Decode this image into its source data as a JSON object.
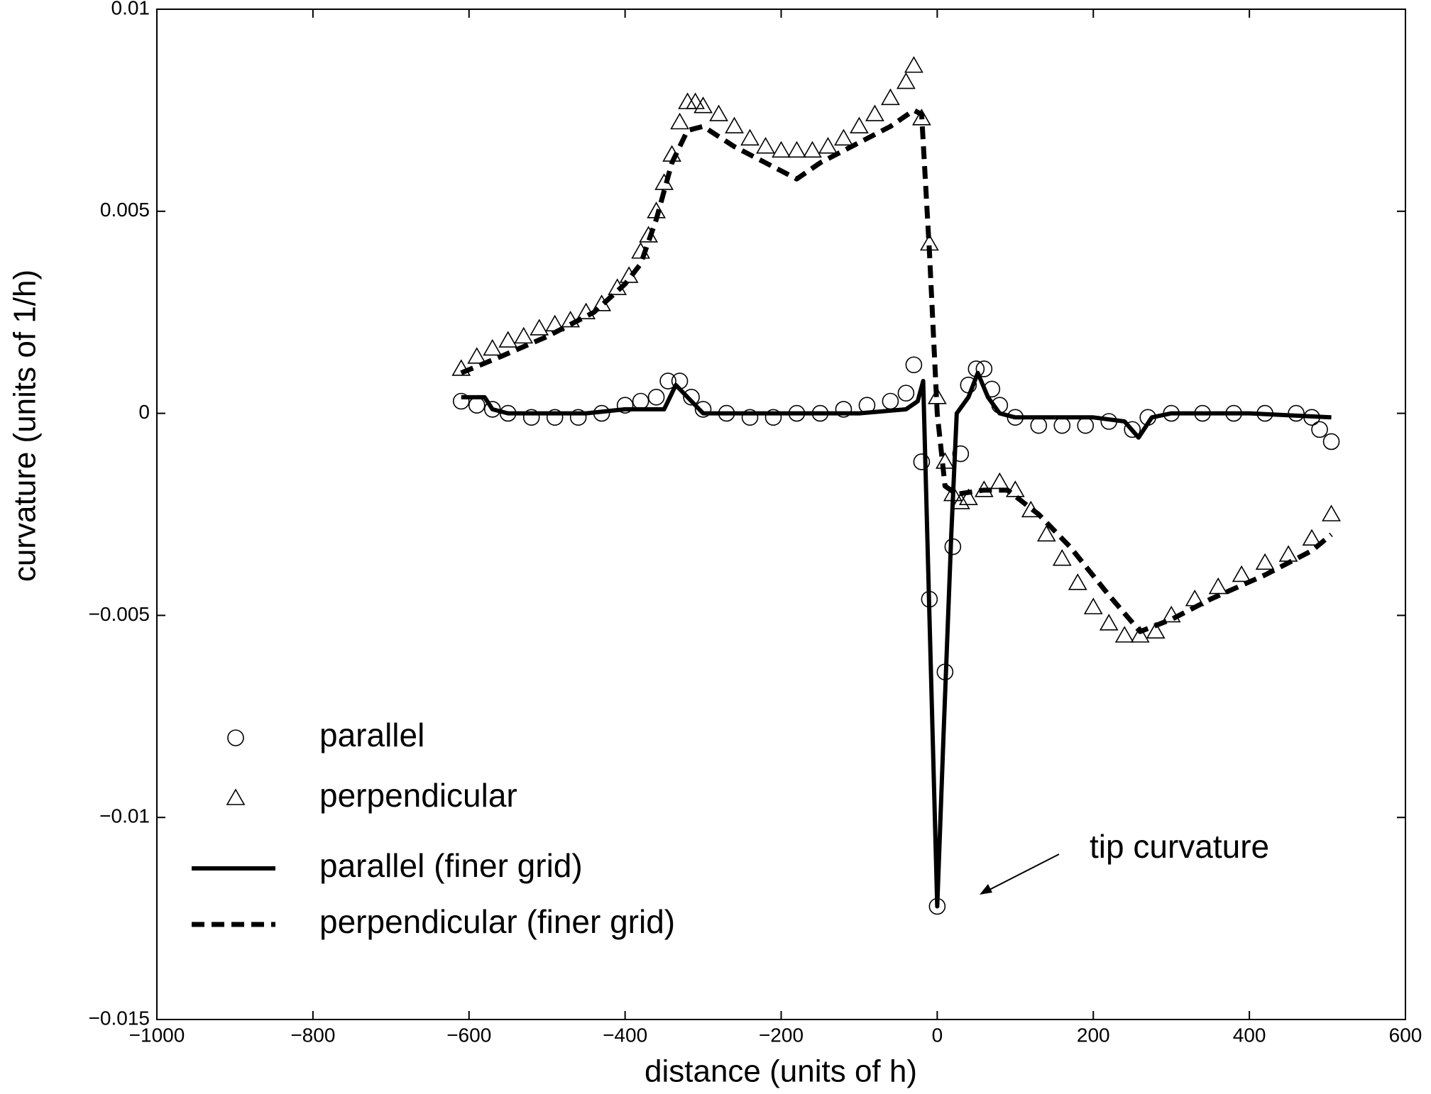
{
  "chart_data": {
    "type": "line",
    "xlabel": "distance (units of h)",
    "ylabel": "curvature (units of 1/h)",
    "annotation": "tip curvature",
    "xlim": [
      -1000,
      600
    ],
    "ylim": [
      -0.015,
      0.01
    ],
    "xticks": [
      {
        "value": -1000,
        "label": "−1000"
      },
      {
        "value": -800,
        "label": "−800"
      },
      {
        "value": -600,
        "label": "−600"
      },
      {
        "value": -400,
        "label": "−400"
      },
      {
        "value": -200,
        "label": "−200"
      },
      0,
      200,
      400,
      600
    ],
    "yticks": [
      {
        "value": -0.015,
        "label": "−0.015"
      },
      {
        "value": -0.01,
        "label": "−0.01"
      },
      {
        "value": -0.005,
        "label": "−0.005"
      },
      0,
      0.005,
      0.01
    ],
    "grid": false,
    "legend": "lower left",
    "series": [
      {
        "name": "parallel",
        "color": "#000000",
        "marker": "circle",
        "line": "none",
        "x": [
          -610,
          -590,
          -570,
          -550,
          -520,
          -490,
          -460,
          -430,
          -400,
          -380,
          -360,
          -345,
          -330,
          -315,
          -300,
          -270,
          -240,
          -210,
          -180,
          -150,
          -120,
          -90,
          -60,
          -40,
          -30,
          -20,
          -10,
          0,
          10,
          20,
          30,
          40,
          50,
          60,
          70,
          80,
          100,
          130,
          160,
          190,
          220,
          250,
          270,
          300,
          340,
          380,
          420,
          460,
          480,
          490,
          505
        ],
        "values": [
          0.0003,
          0.0002,
          0.0001,
          0.0,
          -0.0001,
          -0.0001,
          -0.0001,
          0.0,
          0.0002,
          0.0003,
          0.0004,
          0.0008,
          0.0008,
          0.0004,
          0.0001,
          0.0,
          -0.0001,
          -0.0001,
          0.0,
          0.0,
          0.0001,
          0.0002,
          0.0003,
          0.0005,
          0.0012,
          -0.0012,
          -0.0046,
          -0.0122,
          -0.0064,
          -0.0033,
          -0.001,
          0.0007,
          0.0011,
          0.0011,
          0.0006,
          0.0002,
          -0.0001,
          -0.0003,
          -0.0003,
          -0.0003,
          -0.0002,
          -0.0004,
          -0.0001,
          0.0,
          0.0,
          0.0,
          0.0,
          0.0,
          -0.0001,
          -0.0004,
          -0.0007
        ]
      },
      {
        "name": "perpendicular",
        "color": "#000000",
        "marker": "triangle",
        "line": "none",
        "x": [
          -610,
          -590,
          -570,
          -550,
          -530,
          -510,
          -490,
          -470,
          -450,
          -430,
          -410,
          -395,
          -380,
          -370,
          -360,
          -350,
          -340,
          -330,
          -320,
          -310,
          -300,
          -280,
          -260,
          -240,
          -220,
          -200,
          -180,
          -160,
          -140,
          -120,
          -100,
          -80,
          -60,
          -40,
          -30,
          -20,
          -10,
          0,
          10,
          20,
          30,
          40,
          60,
          80,
          100,
          120,
          140,
          160,
          180,
          200,
          220,
          240,
          260,
          280,
          300,
          330,
          360,
          390,
          420,
          450,
          480,
          505
        ],
        "values": [
          0.0011,
          0.0014,
          0.0016,
          0.0018,
          0.0019,
          0.0021,
          0.0022,
          0.0023,
          0.0025,
          0.0027,
          0.0031,
          0.0034,
          0.004,
          0.0044,
          0.005,
          0.0057,
          0.0064,
          0.0072,
          0.0077,
          0.0077,
          0.0076,
          0.0074,
          0.0071,
          0.0068,
          0.0066,
          0.0065,
          0.0065,
          0.0065,
          0.0066,
          0.0068,
          0.0071,
          0.0074,
          0.0078,
          0.0082,
          0.0086,
          0.0073,
          0.0042,
          0.0004,
          -0.0012,
          -0.002,
          -0.0022,
          -0.0021,
          -0.0019,
          -0.0017,
          -0.0019,
          -0.0024,
          -0.003,
          -0.0036,
          -0.0042,
          -0.0048,
          -0.0052,
          -0.0055,
          -0.0055,
          -0.0054,
          -0.005,
          -0.0046,
          -0.0043,
          -0.004,
          -0.0037,
          -0.0035,
          -0.0031,
          -0.0025
        ]
      },
      {
        "name": "parallel (finer grid)",
        "color": "#000000",
        "marker": "none",
        "line": "solid",
        "x": [
          -610,
          -580,
          -570,
          -550,
          -450,
          -400,
          -350,
          -335,
          -320,
          -300,
          -200,
          -100,
          -40,
          -25,
          -18,
          -10,
          0,
          8,
          18,
          25,
          40,
          52,
          65,
          80,
          100,
          200,
          240,
          258,
          275,
          300,
          400,
          505
        ],
        "values": [
          0.0004,
          0.0004,
          0.0001,
          0.0,
          0.0,
          0.0001,
          0.0001,
          0.0007,
          0.0004,
          0.0,
          0.0,
          0.0,
          0.0001,
          0.0003,
          0.0008,
          -0.005,
          -0.0122,
          -0.008,
          -0.003,
          0.0,
          0.0004,
          0.001,
          0.0004,
          0.0,
          -0.0001,
          -0.0001,
          -0.0002,
          -0.0006,
          -0.0001,
          0.0,
          0.0,
          -0.0001
        ]
      },
      {
        "name": "perpendicular (finer grid)",
        "color": "#000000",
        "marker": "none",
        "line": "dashed",
        "x": [
          -610,
          -560,
          -500,
          -440,
          -400,
          -380,
          -360,
          -340,
          -320,
          -300,
          -260,
          -220,
          -180,
          -150,
          -100,
          -60,
          -30,
          -20,
          -10,
          0,
          10,
          25,
          60,
          90,
          130,
          170,
          220,
          260,
          300,
          350,
          420,
          480,
          505
        ],
        "values": [
          0.001,
          0.0014,
          0.0019,
          0.0025,
          0.0032,
          0.0037,
          0.0048,
          0.0062,
          0.007,
          0.0071,
          0.0066,
          0.0062,
          0.0058,
          0.0062,
          0.0067,
          0.0071,
          0.0075,
          0.0074,
          0.004,
          0.0,
          -0.0018,
          -0.002,
          -0.0019,
          -0.0019,
          -0.0025,
          -0.0033,
          -0.0045,
          -0.0054,
          -0.0051,
          -0.0046,
          -0.004,
          -0.0034,
          -0.003
        ]
      }
    ]
  }
}
